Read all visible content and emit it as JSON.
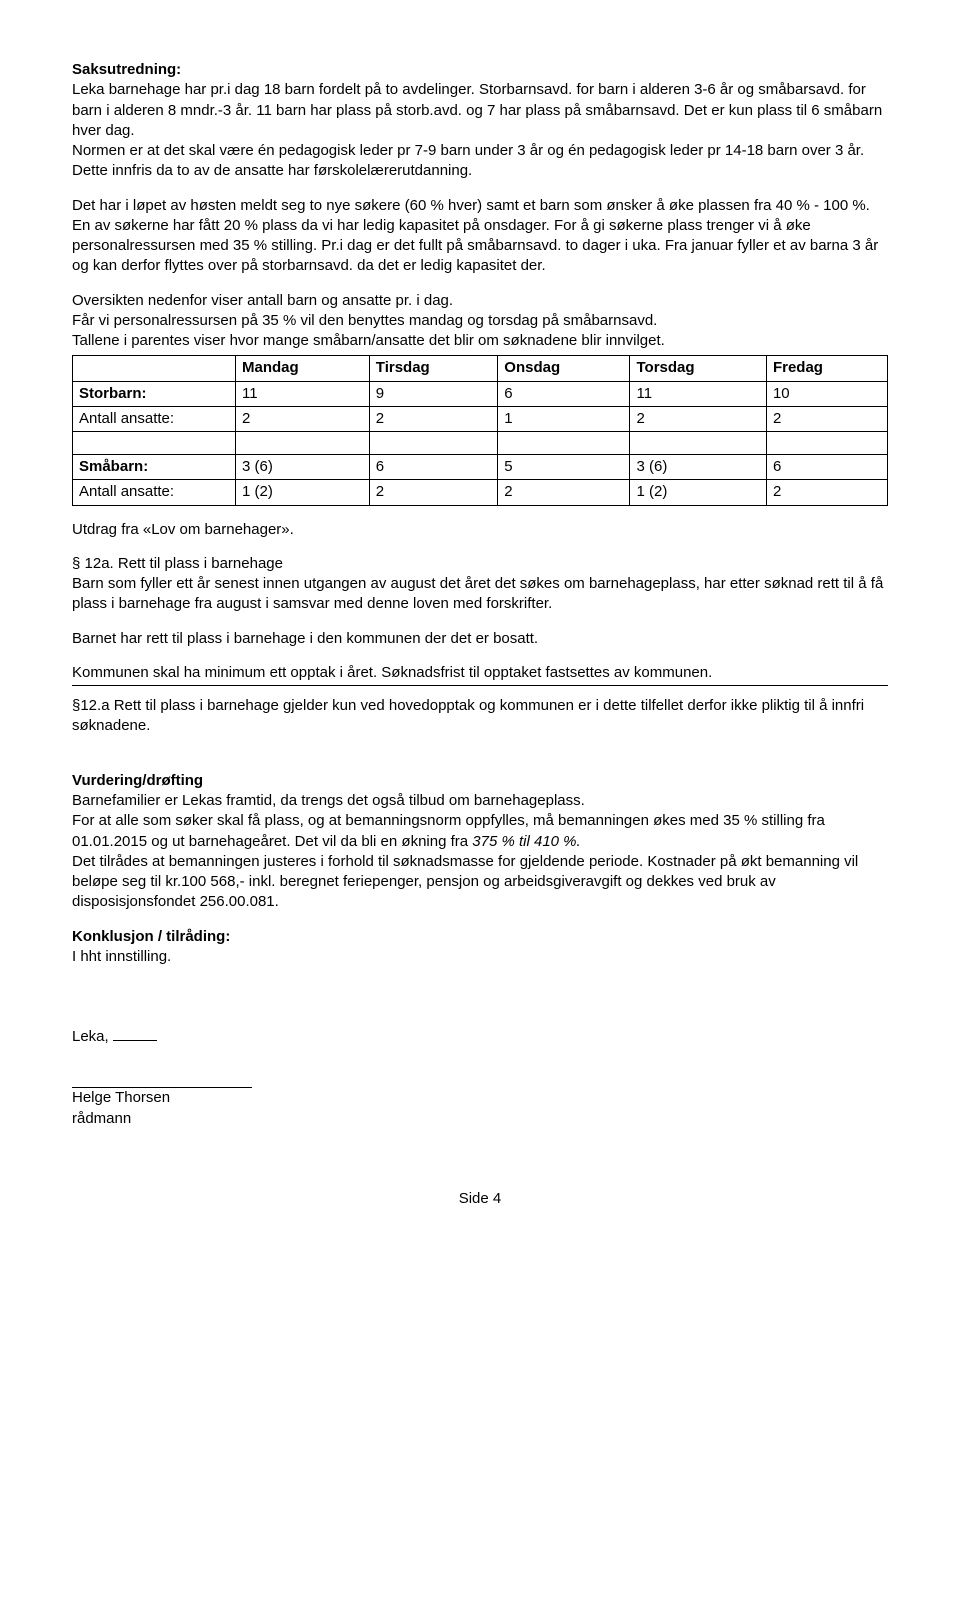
{
  "h1": "Saksutredning:",
  "p1": "Leka barnehage har pr.i dag 18 barn fordelt på to avdelinger. Storbarnsavd. for barn i alderen 3-6 år og småbarsavd. for barn i alderen 8 mndr.-3 år. 11 barn har plass på storb.avd. og 7 har plass på småbarnsavd. Det er kun plass til 6 småbarn hver dag.",
  "p2": "Normen er at det skal være én pedagogisk leder pr 7-9 barn under 3 år og én pedagogisk leder pr 14-18 barn over 3 år. Dette innfris da to av de ansatte har førskolelærerutdanning.",
  "p3": "Det har i løpet av høsten meldt seg to nye søkere (60 % hver) samt et barn som ønsker å øke plassen fra 40 % - 100 %. En av søkerne har fått 20 % plass da vi har ledig kapasitet på onsdager.  For å gi søkerne plass trenger vi å øke personalressursen med 35 % stilling. Pr.i dag er det fullt på småbarnsavd. to dager i uka. Fra januar fyller et av barna 3 år og kan derfor flyttes over på storbarnsavd. da det er ledig kapasitet der.",
  "p4": "Oversikten nedenfor viser antall barn og ansatte pr. i dag.\nFår vi personalressursen på 35 % vil den benyttes mandag og torsdag på småbarnsavd.\nTallene i parentes viser hvor mange småbarn/ansatte det blir om søknadene blir innvilget.",
  "table": {
    "headers": [
      "",
      "Mandag",
      "Tirsdag",
      "Onsdag",
      "Torsdag",
      "Fredag"
    ],
    "rows": [
      {
        "label": "Storbarn:",
        "bold": true,
        "cells": [
          "11",
          "9",
          "6",
          "11",
          "10"
        ]
      },
      {
        "label": "Antall ansatte:",
        "bold": false,
        "cells": [
          "2",
          "2",
          "1",
          "2",
          "2"
        ]
      },
      {
        "blank": true
      },
      {
        "label": "Småbarn:",
        "bold": true,
        "cells": [
          "3 (6)",
          "6",
          "5",
          "3 (6)",
          "6"
        ]
      },
      {
        "label": "Antall ansatte:",
        "bold": false,
        "cells": [
          "1 (2)",
          "2",
          "2",
          "1 (2)",
          "2"
        ]
      }
    ]
  },
  "p5": "Utdrag fra «Lov om barnehager».",
  "p6h": "§ 12a. Rett til plass i barnehage",
  "p6": "Barn som fyller ett år senest innen utgangen av august det året det søkes om barnehageplass, har etter søknad rett til å få plass i barnehage fra august i samsvar med denne loven med forskrifter.",
  "p7": "Barnet har rett til plass i barnehage i den kommunen der det er bosatt.",
  "p8": "Kommunen skal ha minimum ett opptak i året. Søknadsfrist til opptaket fastsettes av kommunen.",
  "p9": "§12.a Rett til plass i barnehage gjelder kun ved hovedopptak og kommunen er i dette tilfellet derfor ikke pliktig til å innfri søknadene.",
  "h2": "Vurdering/drøfting",
  "p10a": "Barnefamilier er Lekas framtid, da trengs det også tilbud om barnehageplass.\nFor at alle som søker skal få plass, og at bemanningsnorm oppfylles, må bemanningen økes med 35 % stilling fra 01.01.2015 og ut barnehageåret.  Det vil da bli en økning fra ",
  "p10b": "375 % til 410 %.",
  "p11": "Det tilrådes at bemanningen justeres i forhold til søknadsmasse for gjeldende periode. Kostnader på økt bemanning vil beløpe seg til kr.100 568,- inkl. beregnet feriepenger, pensjon og arbeidsgiveravgift og dekkes ved bruk av disposisjonsfondet 256.00.081.",
  "h3": "Konklusjon / tilråding:",
  "p12": "I hht innstilling.",
  "sig_place": "Leka,",
  "sig_name": "Helge Thorsen",
  "sig_title": "rådmann",
  "footer": "Side 4"
}
